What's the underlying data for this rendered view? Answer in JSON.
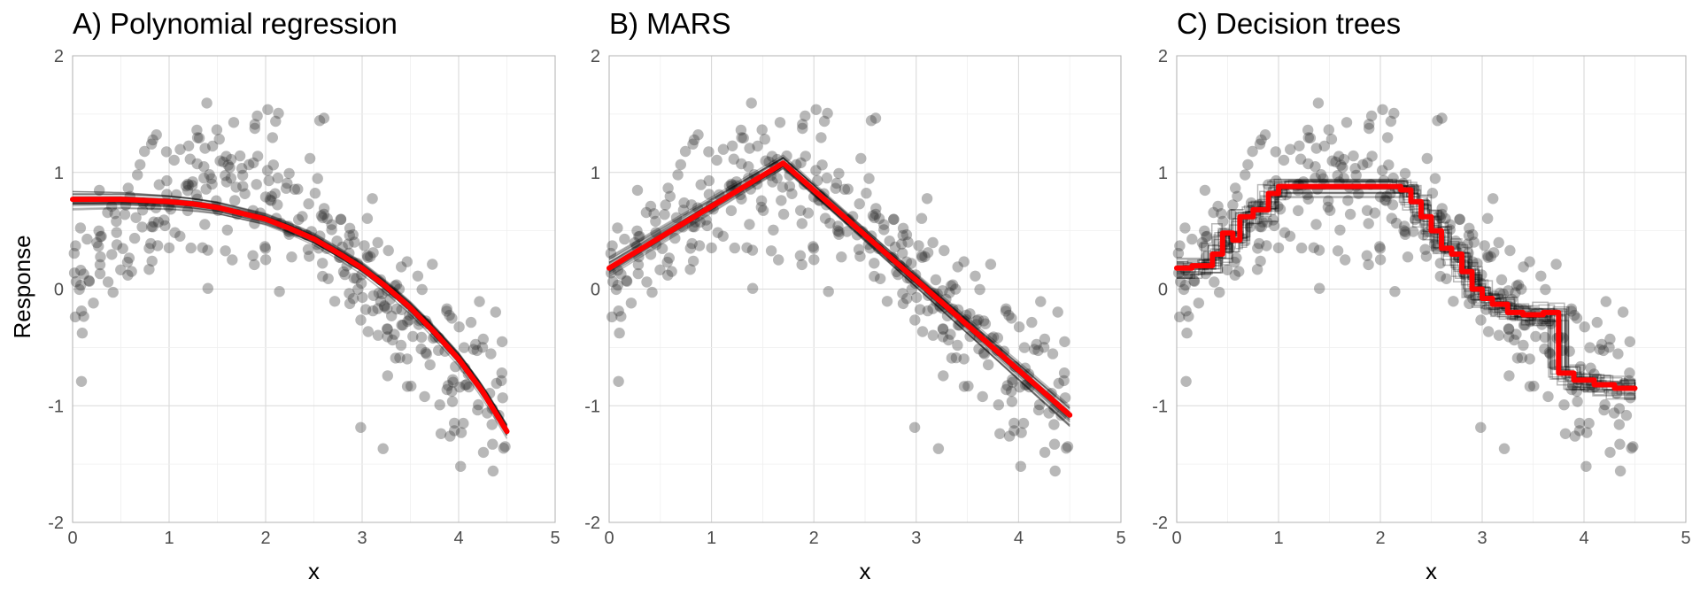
{
  "figure": {
    "ylabel": "Response"
  },
  "chart_data": [
    {
      "type": "scatter",
      "title": "A) Polynomial regression",
      "xlabel": "x",
      "ylabel": "Response",
      "xlim": [
        0,
        5
      ],
      "ylim": [
        -2,
        2
      ],
      "xticks": [
        "0",
        "1",
        "2",
        "3",
        "4",
        "5"
      ],
      "yticks": [
        "-2",
        "-1",
        "0",
        "1",
        "2"
      ],
      "grid": true,
      "legend": "none",
      "fit_method": "polynomial",
      "fit_x": [
        0,
        0.25,
        0.5,
        0.75,
        1,
        1.25,
        1.5,
        1.75,
        2,
        2.25,
        2.5,
        2.75,
        3,
        3.25,
        3.5,
        3.75,
        4,
        4.25,
        4.5
      ],
      "fit_y": [
        0.77,
        0.77,
        0.77,
        0.76,
        0.75,
        0.73,
        0.7,
        0.65,
        0.6,
        0.52,
        0.43,
        0.31,
        0.18,
        0.02,
        -0.16,
        -0.37,
        -0.6,
        -0.88,
        -1.22
      ],
      "series": [
        {
          "kind": "points",
          "color": "#333333",
          "opacity": 0.35
        },
        {
          "kind": "bootstrap_fits",
          "color": "#000000",
          "count": 25
        },
        {
          "kind": "average_fit",
          "color": "#ff0000"
        }
      ]
    },
    {
      "type": "scatter",
      "title": "B) MARS",
      "xlabel": "x",
      "ylabel": "",
      "xlim": [
        0,
        5
      ],
      "ylim": [
        -2,
        2
      ],
      "xticks": [
        "0",
        "1",
        "2",
        "3",
        "4",
        "5"
      ],
      "yticks": [
        "-2",
        "-1",
        "0",
        "1",
        "2"
      ],
      "grid": true,
      "legend": "none",
      "fit_method": "hinge",
      "fit_x": [
        0,
        1.7,
        4.5
      ],
      "fit_y": [
        0.18,
        1.08,
        -1.08
      ],
      "series": [
        {
          "kind": "points",
          "color": "#333333",
          "opacity": 0.35
        },
        {
          "kind": "bootstrap_fits",
          "color": "#000000",
          "count": 25
        },
        {
          "kind": "average_fit",
          "color": "#ff0000"
        }
      ]
    },
    {
      "type": "scatter",
      "title": "C) Decision trees",
      "xlabel": "x",
      "ylabel": "",
      "xlim": [
        0,
        5
      ],
      "ylim": [
        -2,
        2
      ],
      "xticks": [
        "0",
        "1",
        "2",
        "3",
        "4",
        "5"
      ],
      "yticks": [
        "-2",
        "-1",
        "0",
        "1",
        "2"
      ],
      "grid": true,
      "legend": "none",
      "fit_method": "step",
      "fit_x": [
        0,
        0.15,
        0.35,
        0.45,
        0.55,
        0.62,
        0.75,
        0.9,
        1.0,
        2.2,
        2.3,
        2.4,
        2.5,
        2.6,
        2.7,
        2.8,
        2.9,
        3.0,
        3.1,
        3.25,
        3.4,
        3.6,
        3.75,
        3.9,
        4.1,
        4.3,
        4.5
      ],
      "fit_y": [
        0.18,
        0.2,
        0.3,
        0.48,
        0.42,
        0.62,
        0.68,
        0.82,
        0.88,
        0.85,
        0.75,
        0.62,
        0.5,
        0.35,
        0.3,
        0.15,
        0.0,
        -0.08,
        -0.13,
        -0.2,
        -0.22,
        -0.2,
        -0.72,
        -0.78,
        -0.82,
        -0.85,
        -0.85
      ],
      "series": [
        {
          "kind": "points",
          "color": "#333333",
          "opacity": 0.35
        },
        {
          "kind": "bootstrap_fits",
          "color": "#000000",
          "count": 25
        },
        {
          "kind": "average_fit",
          "color": "#ff0000"
        }
      ]
    }
  ]
}
